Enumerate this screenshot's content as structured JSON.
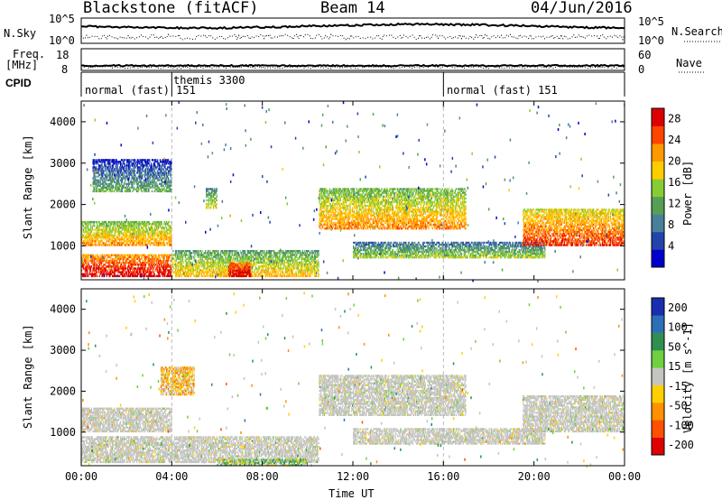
{
  "header": {
    "station": "Blackstone (fitACF)",
    "beam": "Beam 14",
    "date": "04/Jun/2016"
  },
  "params_panel": {
    "nsky_label": "N.Sky",
    "nsky_ticks": [
      "10^5",
      "10^0"
    ],
    "nsearch_label": "N.Search",
    "nsearch_ticks": [
      "10^5",
      "10^0"
    ],
    "freq_label_line1": "Freq.",
    "freq_label_line2": "[MHz]",
    "freq_ticks": [
      "18",
      "8"
    ],
    "nave_label": "Nave",
    "nave_ticks": [
      "60",
      "0"
    ],
    "cpid_label": "CPID"
  },
  "cpid_segments": [
    {
      "label": "normal (fast) 151",
      "start_hour": 0
    },
    {
      "label": "themis 3300",
      "start_hour": 4
    },
    {
      "label": "normal (fast) 151",
      "start_hour": 16
    }
  ],
  "colors": {
    "scatter_gray": "#c4c4c0",
    "power_scale": [
      "#0000cc",
      "#2244aa",
      "#4a7f9a",
      "#55a055",
      "#88cc33",
      "#ffcc00",
      "#ff9900",
      "#ff4400",
      "#dd0000"
    ],
    "velocity_scale": [
      "#1a2fb0",
      "#2b6fb8",
      "#2f8f50",
      "#6fd040",
      "#c4c4c0",
      "#ffd000",
      "#ff9000",
      "#ff5000",
      "#e00000"
    ]
  },
  "chart_data": [
    {
      "type": "heatmap",
      "title": "Power",
      "xlabel": "",
      "ylabel": "Slant Range [km]",
      "xlim": [
        "00:00",
        "00:00"
      ],
      "x_ticks": [
        "00:00",
        "04:00",
        "08:00",
        "12:00",
        "16:00",
        "20:00",
        "00:00"
      ],
      "y_ticks": [
        "1000",
        "2000",
        "3000",
        "4000"
      ],
      "ylim": [
        180,
        4500
      ],
      "colorbar": {
        "label": "Power [dB]",
        "ticks": [
          "4",
          "8",
          "12",
          "16",
          "20",
          "24",
          "28"
        ],
        "range": [
          0,
          30
        ]
      },
      "echo_bands": [
        {
          "t_start": 0.0,
          "t_end": 4.0,
          "range_start_km": 1000,
          "range_end_km": 1600,
          "level_db": 18
        },
        {
          "t_start": 0.0,
          "t_end": 4.0,
          "range_start_km": 250,
          "range_end_km": 800,
          "level_db": 26
        },
        {
          "t_start": 4.0,
          "t_end": 10.5,
          "range_start_km": 250,
          "range_end_km": 900,
          "level_db": 16
        },
        {
          "t_start": 6.5,
          "t_end": 7.5,
          "range_start_km": 250,
          "range_end_km": 600,
          "level_db": 28
        },
        {
          "t_start": 5.5,
          "t_end": 6.0,
          "range_start_km": 1900,
          "range_end_km": 2400,
          "level_db": 14
        },
        {
          "t_start": 10.5,
          "t_end": 17.0,
          "range_start_km": 1400,
          "range_end_km": 2400,
          "level_db": 18
        },
        {
          "t_start": 12.0,
          "t_end": 20.5,
          "range_start_km": 700,
          "range_end_km": 1100,
          "level_db": 12
        },
        {
          "t_start": 19.5,
          "t_end": 24.0,
          "range_start_km": 1000,
          "range_end_km": 1900,
          "level_db": 22
        },
        {
          "t_start": 0.5,
          "t_end": 4.0,
          "range_start_km": 2300,
          "range_end_km": 3100,
          "level_db": 8
        }
      ]
    },
    {
      "type": "heatmap",
      "title": "Velocity",
      "xlabel": "Time UT",
      "ylabel": "Slant Range [km]",
      "x_ticks": [
        "00:00",
        "04:00",
        "08:00",
        "12:00",
        "16:00",
        "20:00",
        "00:00"
      ],
      "y_ticks": [
        "1000",
        "2000",
        "3000",
        "4000"
      ],
      "ylim": [
        180,
        4500
      ],
      "colorbar": {
        "label": "Velocity [m s^-1]",
        "ticks": [
          "200",
          "100",
          "50",
          "15",
          "-15",
          "-50",
          "-100",
          "-200"
        ],
        "range": [
          -250,
          250
        ]
      },
      "echo_bands": [
        {
          "t_start": 0.0,
          "t_end": 4.0,
          "range_start_km": 1000,
          "range_end_km": 1600,
          "velocity": -10
        },
        {
          "t_start": 0.0,
          "t_end": 10.5,
          "range_start_km": 250,
          "range_end_km": 900,
          "velocity": 0
        },
        {
          "t_start": 6.0,
          "t_end": 10.0,
          "range_start_km": 180,
          "range_end_km": 350,
          "velocity": 40
        },
        {
          "t_start": 10.5,
          "t_end": 17.0,
          "range_start_km": 1400,
          "range_end_km": 2400,
          "velocity": 5
        },
        {
          "t_start": 12.0,
          "t_end": 20.5,
          "range_start_km": 700,
          "range_end_km": 1100,
          "velocity": -5
        },
        {
          "t_start": 19.5,
          "t_end": 24.0,
          "range_start_km": 1000,
          "range_end_km": 1900,
          "velocity": 0
        },
        {
          "t_start": 3.5,
          "t_end": 5.0,
          "range_start_km": 1900,
          "range_end_km": 2600,
          "velocity": -60
        }
      ]
    }
  ]
}
